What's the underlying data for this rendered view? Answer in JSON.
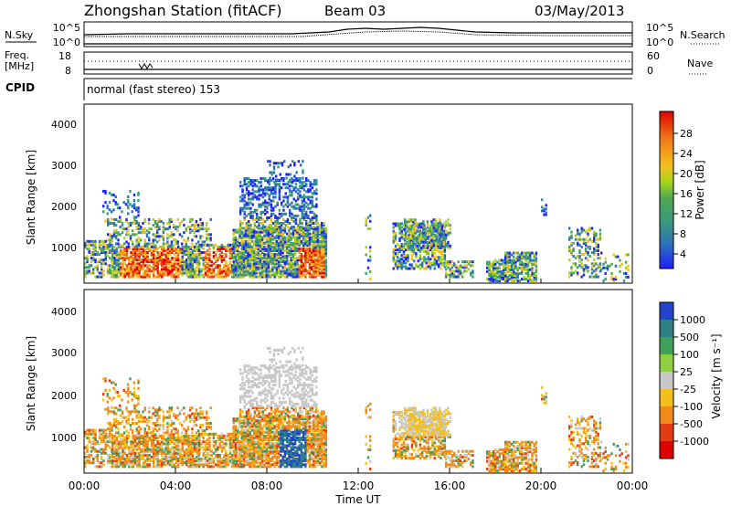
{
  "header": {
    "title": "Zhongshan Station (fitACF)",
    "beam": "Beam 03",
    "date": "03/May/2013"
  },
  "top_panels": {
    "nsky_label": "N.Sky",
    "nsky_ticks": [
      "10^5",
      "10^0"
    ],
    "nsearch_label": "N.Search",
    "nsearch_ticks": [
      "10^5",
      "10^0"
    ],
    "freq_label_1": "Freq.",
    "freq_label_2": "[MHz]",
    "freq_ticks": [
      "18",
      "8"
    ],
    "nave_label": "Nave",
    "nave_ticks": [
      "60",
      "0"
    ],
    "cpid_label": "CPID",
    "cpid_text": "normal (fast stereo) 153"
  },
  "chart_data": [
    {
      "type": "heatmap",
      "name": "power",
      "ylabel": "Slant Range [km]",
      "yticks": [
        "4000",
        "3000",
        "2000",
        "1000"
      ],
      "ylim": [
        180,
        4500
      ],
      "colorbar_label": "Power [dB]",
      "colorbar_ticks": [
        "28",
        "24",
        "20",
        "16",
        "12",
        "8",
        "4"
      ],
      "colorbar_colors": [
        "#1f1fff",
        "#2b6fbf",
        "#3a9a7a",
        "#4fa84f",
        "#a6d41a",
        "#f3c01a",
        "#f59a1a",
        "#ef6a12",
        "#e63a10",
        "#e00000"
      ]
    },
    {
      "type": "heatmap",
      "name": "velocity",
      "ylabel": "Slant Range [km]",
      "yticks": [
        "4000",
        "3000",
        "2000",
        "1000"
      ],
      "ylim": [
        180,
        4500
      ],
      "colorbar_label": "Velocity [m s⁻¹]",
      "colorbar_ticks": [
        "1000",
        "500",
        "100",
        "25",
        "-25",
        "-100",
        "-500",
        "-1000"
      ],
      "colorbar_colors": [
        "#2244cc",
        "#2f7f86",
        "#3ea05a",
        "#8fd040",
        "#c8c8c8",
        "#f3c01a",
        "#f28a1a",
        "#e63a10",
        "#e00000"
      ]
    }
  ],
  "x_axis": {
    "ticks": [
      "00:00",
      "04:00",
      "08:00",
      "12:00",
      "16:00",
      "20:00",
      "00:00"
    ],
    "label": "Time UT"
  }
}
